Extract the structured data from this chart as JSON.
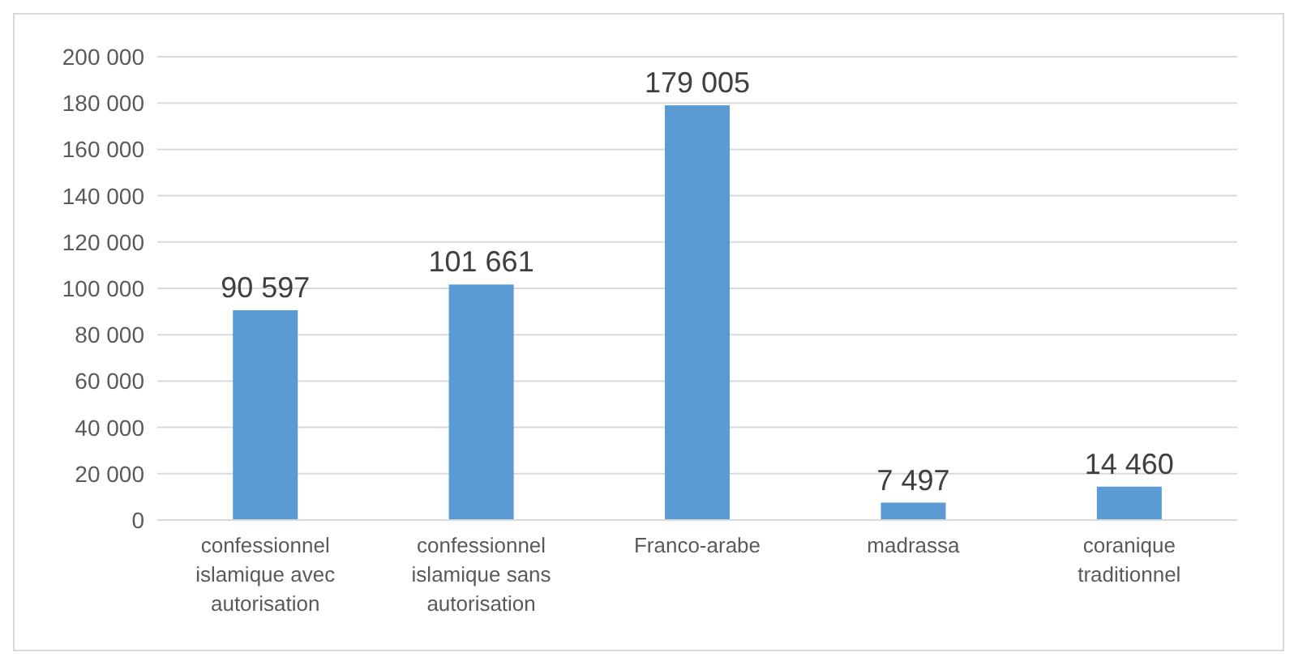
{
  "chart_data": {
    "type": "bar",
    "categories": [
      "confessionnel islamique avec autorisation",
      "confessionnel islamique sans autorisation",
      "Franco-arabe",
      "madrassa",
      "coranique traditionnel"
    ],
    "values": [
      90597,
      101661,
      179005,
      7497,
      14460
    ],
    "value_labels": [
      "90 597",
      "101 661",
      "179 005",
      "7 497",
      "14 460"
    ],
    "color": "#5b9bd5",
    "ylim": [
      0,
      200000
    ],
    "yticks": [
      {
        "value": 0,
        "label": "0"
      },
      {
        "value": 20000,
        "label": "20 000"
      },
      {
        "value": 40000,
        "label": "40 000"
      },
      {
        "value": 60000,
        "label": "60 000"
      },
      {
        "value": 80000,
        "label": "80 000"
      },
      {
        "value": 100000,
        "label": "100 000"
      },
      {
        "value": 120000,
        "label": "120 000"
      },
      {
        "value": 140000,
        "label": "140 000"
      },
      {
        "value": 160000,
        "label": "160 000"
      },
      {
        "value": 180000,
        "label": "180 000"
      },
      {
        "value": 200000,
        "label": "200 000"
      }
    ],
    "grid": "y",
    "legend": false
  }
}
